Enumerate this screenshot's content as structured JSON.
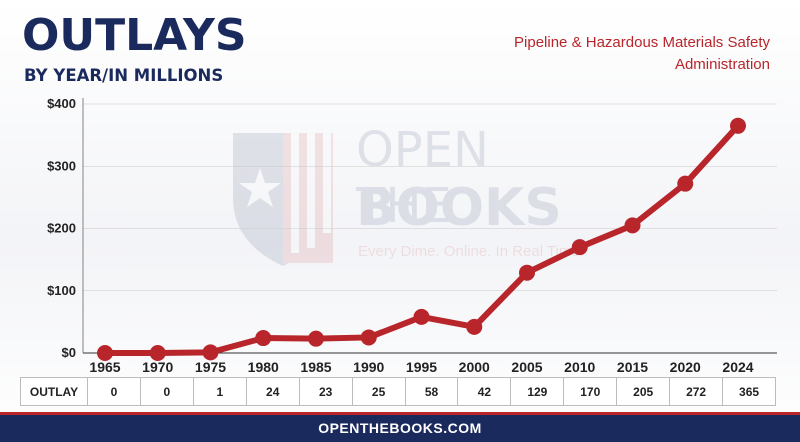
{
  "header": {
    "title": "OUTLAYS",
    "subtitle": "BY YEAR/IN MILLIONS",
    "agency_line1": "Pipeline & Hazardous Materials Safety",
    "agency_line2": "Administration"
  },
  "watermark": {
    "line1": "OPEN THE",
    "line2": "BOOKS",
    "tagline": "Every Dime. Online. In Real Time."
  },
  "chart_data": {
    "type": "line",
    "x": [
      "1965",
      "1970",
      "1975",
      "1980",
      "1985",
      "1990",
      "1995",
      "2000",
      "2005",
      "2010",
      "2015",
      "2020",
      "2024"
    ],
    "values": [
      0,
      0,
      1,
      24,
      23,
      25,
      58,
      42,
      129,
      170,
      205,
      272,
      365
    ],
    "y_ticks": [
      "$0",
      "$100",
      "$200",
      "$300",
      "$400"
    ],
    "ylim": [
      0,
      400
    ],
    "grid": false,
    "series_color": "#b8262b"
  },
  "table": {
    "row_label": "OUTLAY"
  },
  "footer": {
    "text": "OPENTHEBOOKS.COM"
  },
  "colors": {
    "navy": "#1b2a5c",
    "red": "#b8262b"
  }
}
